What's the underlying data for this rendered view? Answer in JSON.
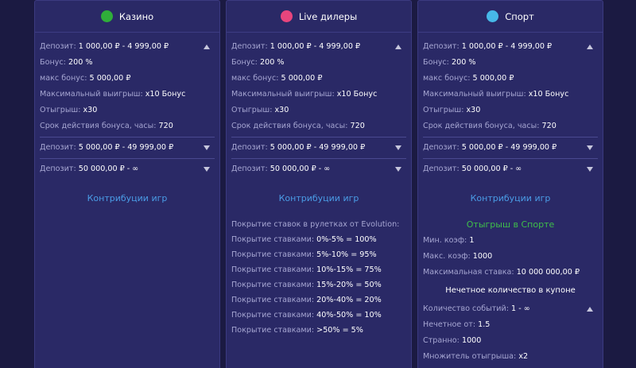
{
  "columns": [
    {
      "title": "Казино",
      "tiers": [
        {
          "label": "Депозит:",
          "value": "1 000,00 ₽ - 4 999,00 ₽",
          "details": [
            {
              "label": "Бонус:",
              "value": "200 %"
            },
            {
              "label": "макс бонус:",
              "value": "5 000,00 ₽"
            },
            {
              "label": "Максимальный выигрыш:",
              "value": "x10 Бонус"
            },
            {
              "label": "Отыгрыш:",
              "value": "x30"
            },
            {
              "label": "Срок действия бонуса, часы:",
              "value": "720"
            }
          ]
        },
        {
          "label": "Депозит:",
          "value": "5 000,00 ₽ - 49 999,00 ₽"
        },
        {
          "label": "Депозит:",
          "value": "50 000,00 ₽ - ∞"
        }
      ],
      "link": "Контрибуции игр"
    },
    {
      "title": "Live дилеры",
      "tiers": [
        {
          "label": "Депозит:",
          "value": "1 000,00 ₽ - 4 999,00 ₽",
          "details": [
            {
              "label": "Бонус:",
              "value": "200 %"
            },
            {
              "label": "макс бонус:",
              "value": "5 000,00 ₽"
            },
            {
              "label": "Максимальный выигрыш:",
              "value": "x10 Бонус"
            },
            {
              "label": "Отыгрыш:",
              "value": "x30"
            },
            {
              "label": "Срок действия бонуса, часы:",
              "value": "720"
            }
          ]
        },
        {
          "label": "Депозит:",
          "value": "5 000,00 ₽ - 49 999,00 ₽"
        },
        {
          "label": "Депозит:",
          "value": "50 000,00 ₽ - ∞"
        }
      ],
      "link": "Контрибуции игр",
      "coverage": {
        "title": "Покрытие ставок в рулетках от Evolution:",
        "rows": [
          {
            "label": "Покрытие ставками:",
            "value": "0%-5% = 100%"
          },
          {
            "label": "Покрытие ставками:",
            "value": "5%-10% = 95%"
          },
          {
            "label": "Покрытие ставками:",
            "value": "10%-15% = 75%"
          },
          {
            "label": "Покрытие ставками:",
            "value": "15%-20% = 50%"
          },
          {
            "label": "Покрытие ставками:",
            "value": "20%-40% = 20%"
          },
          {
            "label": "Покрытие ставками:",
            "value": "40%-50% = 10%"
          },
          {
            "label": "Покрытие ставками:",
            "value": ">50% = 5%"
          }
        ]
      }
    },
    {
      "title": "Спорт",
      "tiers": [
        {
          "label": "Депозит:",
          "value": "1 000,00 ₽ - 4 999,00 ₽",
          "details": [
            {
              "label": "Бонус:",
              "value": "200 %"
            },
            {
              "label": "макс бонус:",
              "value": "5 000,00 ₽"
            },
            {
              "label": "Максимальный выигрыш:",
              "value": "x10 Бонус"
            },
            {
              "label": "Отыгрыш:",
              "value": "x30"
            },
            {
              "label": "Срок действия бонуса, часы:",
              "value": "720"
            }
          ]
        },
        {
          "label": "Депозит:",
          "value": "5 000,00 ₽ - 49 999,00 ₽"
        },
        {
          "label": "Депозит:",
          "value": "50 000,00 ₽ - ∞"
        }
      ],
      "link": "Контрибуции игр",
      "sport": {
        "title": "Отыгрыш в Спорте",
        "rows": [
          {
            "label": "Мин. коэф:",
            "value": "1"
          },
          {
            "label": "Макс. коэф:",
            "value": "1000"
          },
          {
            "label": "Максимальная ставка:",
            "value": "10 000 000,00 ₽"
          }
        ],
        "subheading": "Нечетное количество в купоне",
        "odd_rows": [
          {
            "label": "Количество событий:",
            "value": "1 - ∞"
          },
          {
            "label": "Нечетное от:",
            "value": "1.5"
          },
          {
            "label": "Странно:",
            "value": "1000"
          },
          {
            "label": "Множитель отыгрыша:",
            "value": "x2"
          }
        ]
      }
    }
  ]
}
